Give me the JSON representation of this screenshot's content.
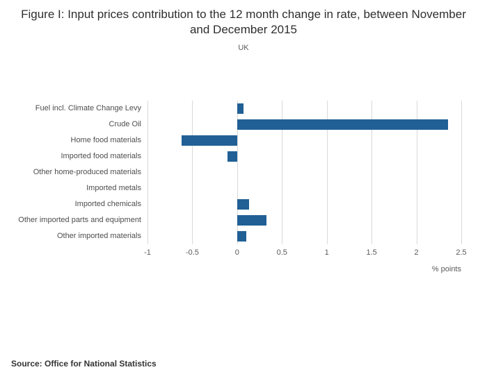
{
  "title": "Figure I: Input prices contribution to the 12 month change in rate, between November and December 2015",
  "subtitle": "UK",
  "source": "Source: Office for National Statistics",
  "chart_data": {
    "type": "bar",
    "orientation": "horizontal",
    "title": "Figure I: Input prices contribution to the 12 month change in rate, between November and December 2015",
    "subtitle": "UK",
    "categories": [
      "Fuel incl. Climate Change Levy",
      "Crude Oil",
      "Home food materials",
      "Imported food materials",
      "Other home-produced materials",
      "Imported metals",
      "Imported chemicals",
      "Other imported parts and equipment",
      "Other imported materials"
    ],
    "values": [
      0.07,
      2.35,
      -0.62,
      -0.11,
      0,
      0,
      0.13,
      0.33,
      0.1
    ],
    "xlabel": "% points",
    "ylabel": "",
    "xlim": [
      -1,
      2.5
    ],
    "xticks": [
      -1,
      -0.5,
      0,
      0.5,
      1,
      1.5,
      2,
      2.5
    ],
    "xtick_labels": [
      "-1",
      "-0.5",
      "0",
      "0.5",
      "1",
      "1.5",
      "2",
      "2.5"
    ],
    "bar_color": "#206095",
    "grid": true,
    "legend": "none"
  }
}
